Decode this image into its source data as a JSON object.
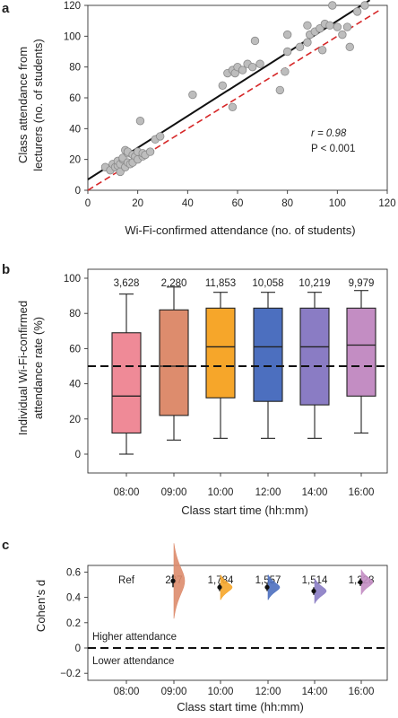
{
  "chart_data": [
    {
      "panel": "a",
      "type": "scatter",
      "xlabel": "Wi-Fi-confirmed attendance (no. of students)",
      "ylabel_lines": [
        "Class attendance from",
        "lecturers (no. of students)"
      ],
      "xlim": [
        0,
        120
      ],
      "ylim": [
        0,
        120
      ],
      "xticks": [
        "0",
        "20",
        "40",
        "60",
        "80",
        "100",
        "120"
      ],
      "yticks": [
        "0",
        "20",
        "40",
        "60",
        "80",
        "100",
        "120"
      ],
      "annotation": {
        "r": "r = 0.98",
        "p": "P < 0.001"
      },
      "fit_line": {
        "intercept": 7,
        "slope": 1.03,
        "x_range": [
          0,
          113
        ],
        "color": "#111111"
      },
      "identity_line": {
        "intercept": 0,
        "slope": 1,
        "x_range": [
          0,
          117
        ],
        "color": "#d62728"
      },
      "marker_color": "#bdbdbd",
      "points": [
        [
          7,
          15
        ],
        [
          9,
          13
        ],
        [
          10,
          17
        ],
        [
          11,
          15
        ],
        [
          12,
          16
        ],
        [
          12,
          19
        ],
        [
          13,
          12
        ],
        [
          13,
          17
        ],
        [
          14,
          20
        ],
        [
          14,
          21
        ],
        [
          15,
          15
        ],
        [
          15,
          26
        ],
        [
          16,
          18
        ],
        [
          16,
          24
        ],
        [
          16,
          25
        ],
        [
          17,
          17
        ],
        [
          18,
          18
        ],
        [
          18,
          23
        ],
        [
          19,
          22
        ],
        [
          20,
          20
        ],
        [
          20,
          25
        ],
        [
          21,
          45
        ],
        [
          22,
          22
        ],
        [
          22,
          24
        ],
        [
          23,
          23
        ],
        [
          25,
          25
        ],
        [
          27,
          33
        ],
        [
          29,
          35
        ],
        [
          42,
          62
        ],
        [
          54,
          68
        ],
        [
          56,
          76
        ],
        [
          58,
          54
        ],
        [
          58,
          78
        ],
        [
          59,
          76
        ],
        [
          60,
          80
        ],
        [
          62,
          78
        ],
        [
          64,
          82
        ],
        [
          66,
          80
        ],
        [
          67,
          97
        ],
        [
          69,
          82
        ],
        [
          77,
          65
        ],
        [
          79,
          77
        ],
        [
          80,
          90
        ],
        [
          80,
          101
        ],
        [
          85,
          93
        ],
        [
          88,
          96
        ],
        [
          88,
          107
        ],
        [
          89,
          101
        ],
        [
          91,
          103
        ],
        [
          93,
          105
        ],
        [
          94,
          91
        ],
        [
          95,
          108
        ],
        [
          97,
          107
        ],
        [
          98,
          120
        ],
        [
          100,
          106
        ],
        [
          102,
          101
        ],
        [
          104,
          106
        ],
        [
          105,
          93
        ],
        [
          108,
          116
        ],
        [
          111,
          120
        ]
      ]
    },
    {
      "panel": "b",
      "type": "box",
      "xlabel": "Class start time (hh:mm)",
      "ylabel_lines": [
        "Individual Wi-Fi-confirmed",
        "attendance rate (%)"
      ],
      "ylim": [
        0,
        100
      ],
      "yticks": [
        "0",
        "20",
        "40",
        "60",
        "80",
        "100"
      ],
      "reference_line": 50,
      "categories": [
        "08:00",
        "09:00",
        "10:00",
        "12:00",
        "14:00",
        "16:00"
      ],
      "counts": [
        "3,628",
        "2,280",
        "11,853",
        "10,058",
        "10,219",
        "9,979"
      ],
      "colors": [
        "#ef8a97",
        "#dd8c6d",
        "#f6a62a",
        "#4c6fbf",
        "#8a7cc4",
        "#c38dc3"
      ],
      "boxes": [
        {
          "min": 0,
          "q1": 12,
          "median": 33,
          "q3": 69,
          "max": 91
        },
        {
          "min": 8,
          "q1": 22,
          "median": 50,
          "q3": 82,
          "max": 95
        },
        {
          "min": 9,
          "q1": 32,
          "median": 61,
          "q3": 83,
          "max": 92
        },
        {
          "min": 9,
          "q1": 30,
          "median": 61,
          "q3": 83,
          "max": 92
        },
        {
          "min": 9,
          "q1": 28,
          "median": 61,
          "q3": 83,
          "max": 92
        },
        {
          "min": 12,
          "q1": 33,
          "median": 62,
          "q3": 83,
          "max": 93
        }
      ]
    },
    {
      "panel": "c",
      "type": "estimation",
      "xlabel": "Class start time (hh:mm)",
      "ylabel": "Cohen's d",
      "ylim": [
        -0.25,
        0.75
      ],
      "yticks": [
        "−0.2",
        "0",
        "0.2",
        "0.4",
        "0.6"
      ],
      "reference_line": 0,
      "categories": [
        "08:00",
        "09:00",
        "10:00",
        "12:00",
        "14:00",
        "16:00"
      ],
      "counts": [
        "Ref",
        "237",
        "1,784",
        "1,557",
        "1,514",
        "1,228"
      ],
      "colors": [
        "#ef8a97",
        "#dd8c6d",
        "#f6a62a",
        "#4c6fbf",
        "#8a7cc4",
        "#c38dc3"
      ],
      "effects": [
        null,
        {
          "d": 0.53,
          "ci": [
            0.48,
            0.58
          ]
        },
        {
          "d": 0.48,
          "ci": [
            0.45,
            0.51
          ]
        },
        {
          "d": 0.48,
          "ci": [
            0.45,
            0.51
          ]
        },
        {
          "d": 0.45,
          "ci": [
            0.42,
            0.48
          ]
        },
        {
          "d": 0.52,
          "ci": [
            0.49,
            0.55
          ]
        }
      ],
      "labels": {
        "above": "Higher attendance",
        "below": "Lower attendance"
      }
    }
  ]
}
